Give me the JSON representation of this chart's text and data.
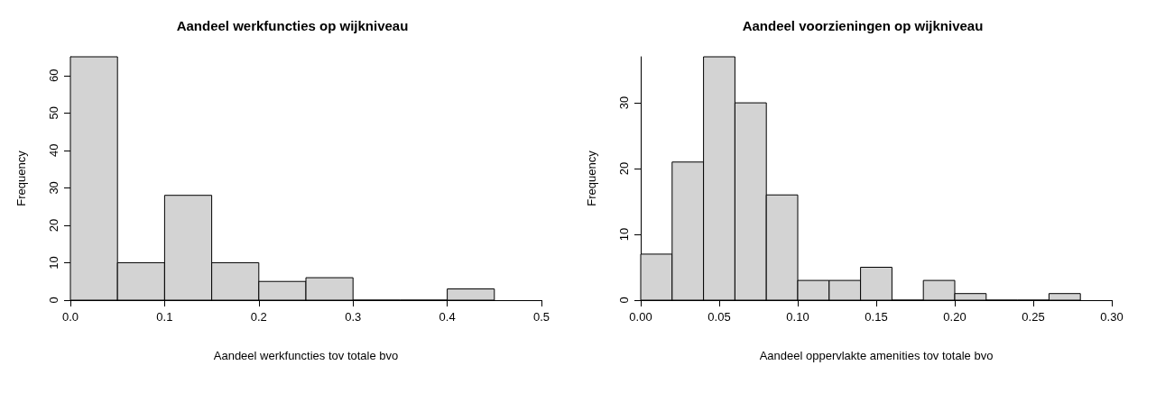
{
  "chart_data": [
    {
      "type": "histogram",
      "title": "Aandeel werkfuncties op wijkniveau",
      "xlabel": "Aandeel werkfuncties tov totale bvo",
      "ylabel": "Frequency",
      "bins": [
        0,
        0.05,
        0.1,
        0.15,
        0.2,
        0.25,
        0.3,
        0.35,
        0.4,
        0.45
      ],
      "values": [
        65,
        10,
        28,
        10,
        5,
        6,
        0,
        0,
        3
      ],
      "color": "#d3d3d3",
      "xlim": [
        0,
        0.5
      ],
      "xticks": [
        {
          "value": 0,
          "label": "0.0"
        },
        0.1,
        0.2,
        0.3,
        0.4,
        0.5
      ],
      "ylim": [
        0,
        65
      ],
      "yticks": [
        0,
        10,
        20,
        30,
        40,
        50,
        60
      ],
      "grid": false
    },
    {
      "type": "histogram",
      "title": "Aandeel voorzieningen op wijkniveau",
      "xlabel": "Aandeel oppervlakte amenities tov totale bvo",
      "ylabel": "Frequency",
      "bins": [
        0,
        0.02,
        0.04,
        0.06,
        0.08,
        0.1,
        0.12,
        0.14,
        0.16,
        0.18,
        0.2,
        0.22,
        0.24,
        0.26,
        0.28
      ],
      "values": [
        7,
        21,
        37,
        30,
        16,
        3,
        3,
        5,
        0,
        3,
        1,
        0,
        0,
        1
      ],
      "color": "#d3d3d3",
      "xlim": [
        0,
        0.3
      ],
      "xticks": [
        {
          "value": 0,
          "label": "0.00"
        },
        {
          "value": 0.05,
          "label": "0.05"
        },
        {
          "value": 0.1,
          "label": "0.10"
        },
        {
          "value": 0.15,
          "label": "0.15"
        },
        {
          "value": 0.2,
          "label": "0.20"
        },
        {
          "value": 0.25,
          "label": "0.25"
        },
        {
          "value": 0.3,
          "label": "0.30"
        }
      ],
      "ylim": [
        0,
        37
      ],
      "yticks": [
        0,
        10,
        20,
        30
      ],
      "grid": false
    }
  ]
}
